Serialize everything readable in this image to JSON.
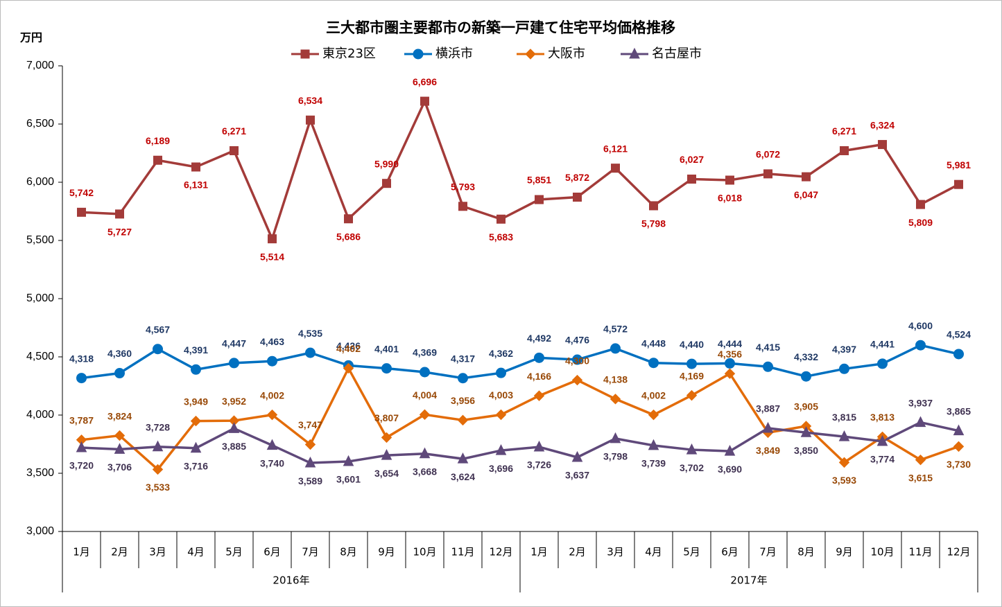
{
  "chart_data": {
    "type": "line",
    "title": "三大都市圏主要都市の新築一戸建て住宅平均価格推移",
    "y_label": "万円",
    "groups": [
      {
        "name": "2016年",
        "categories": [
          "1月",
          "2月",
          "3月",
          "4月",
          "5月",
          "6月",
          "7月",
          "8月",
          "9月",
          "10月",
          "11月",
          "12月"
        ]
      },
      {
        "name": "2017年",
        "categories": [
          "1月",
          "2月",
          "3月",
          "4月",
          "5月",
          "6月",
          "7月",
          "8月",
          "9月",
          "10月",
          "11月",
          "12月"
        ]
      }
    ],
    "ylim": [
      3000,
      7000
    ],
    "yticks": [
      {
        "value": 3000,
        "label": "3,000"
      },
      {
        "value": 3500,
        "label": "3,500"
      },
      {
        "value": 4000,
        "label": "4,000"
      },
      {
        "value": 4500,
        "label": "4,500"
      },
      {
        "value": 5000,
        "label": "5,000"
      },
      {
        "value": 5500,
        "label": "5,500"
      },
      {
        "value": 6000,
        "label": "6,000"
      },
      {
        "value": 6500,
        "label": "6,500"
      },
      {
        "value": 7000,
        "label": "7,000"
      }
    ],
    "series": [
      {
        "name": "東京23区",
        "color": "#a33b39",
        "label_color": "#c00000",
        "marker": "square",
        "values": [
          5742,
          5727,
          6189,
          6131,
          6271,
          5514,
          6534,
          5686,
          5990,
          6696,
          5793,
          5683,
          5851,
          5872,
          6121,
          5798,
          6027,
          6018,
          6072,
          6047,
          6271,
          6324,
          5809,
          5981
        ],
        "value_labels": [
          "5,742",
          "5,727",
          "6,189",
          "6,131",
          "6,271",
          "5,514",
          "6,534",
          "5,686",
          "5,990",
          "6,696",
          "5,793",
          "5,683",
          "5,851",
          "5,872",
          "6,121",
          "5,798",
          "6,027",
          "6,018",
          "6,072",
          "6,047",
          "6,271",
          "6,324",
          "5,809",
          "5,981"
        ]
      },
      {
        "name": "横浜市",
        "color": "#0070c0",
        "label_color": "#1f3864",
        "marker": "circle",
        "values": [
          4318,
          4360,
          4567,
          4391,
          4447,
          4463,
          4535,
          4426,
          4401,
          4369,
          4317,
          4362,
          4492,
          4476,
          4572,
          4448,
          4440,
          4444,
          4415,
          4332,
          4397,
          4441,
          4600,
          4524
        ],
        "value_labels": [
          "4,318",
          "4,360",
          "4,567",
          "4,391",
          "4,447",
          "4,463",
          "4,535",
          "4,426",
          "4,401",
          "4,369",
          "4,317",
          "4,362",
          "4,492",
          "4,476",
          "4,572",
          "4,448",
          "4,440",
          "4,444",
          "4,415",
          "4,332",
          "4,397",
          "4,441",
          "4,600",
          "4,524"
        ]
      },
      {
        "name": "大阪市",
        "color": "#e36c09",
        "label_color": "#984806",
        "marker": "diamond",
        "values": [
          3787,
          3824,
          3533,
          3949,
          3952,
          4002,
          3747,
          4402,
          3807,
          4004,
          3956,
          4003,
          4166,
          4300,
          4138,
          4002,
          4169,
          4356,
          3849,
          3905,
          3593,
          3813,
          3615,
          3730
        ],
        "value_labels": [
          "3,787",
          "3,824",
          "3,533",
          "3,949",
          "3,952",
          "4,002",
          "3,747",
          "4,402",
          "3,807",
          "4,004",
          "3,956",
          "4,003",
          "4,166",
          "4,300",
          "4,138",
          "4,002",
          "4,169",
          "4,356",
          "3,849",
          "3,905",
          "3,593",
          "3,813",
          "3,615",
          "3,730"
        ]
      },
      {
        "name": "名古屋市",
        "color": "#5f497a",
        "label_color": "#3f3151",
        "marker": "triangle",
        "values": [
          3720,
          3706,
          3728,
          3716,
          3885,
          3740,
          3589,
          3601,
          3654,
          3668,
          3624,
          3696,
          3726,
          3637,
          3798,
          3739,
          3702,
          3690,
          3887,
          3850,
          3815,
          3774,
          3937,
          3865
        ],
        "value_labels": [
          "3,720",
          "3,706",
          "3,728",
          "3,716",
          "3,885",
          "3,740",
          "3,589",
          "3,601",
          "3,654",
          "3,668",
          "3,624",
          "3,696",
          "3,726",
          "3,637",
          "3,798",
          "3,739",
          "3,702",
          "3,690",
          "3,887",
          "3,850",
          "3,815",
          "3,774",
          "3,937",
          "3,865"
        ]
      }
    ]
  }
}
